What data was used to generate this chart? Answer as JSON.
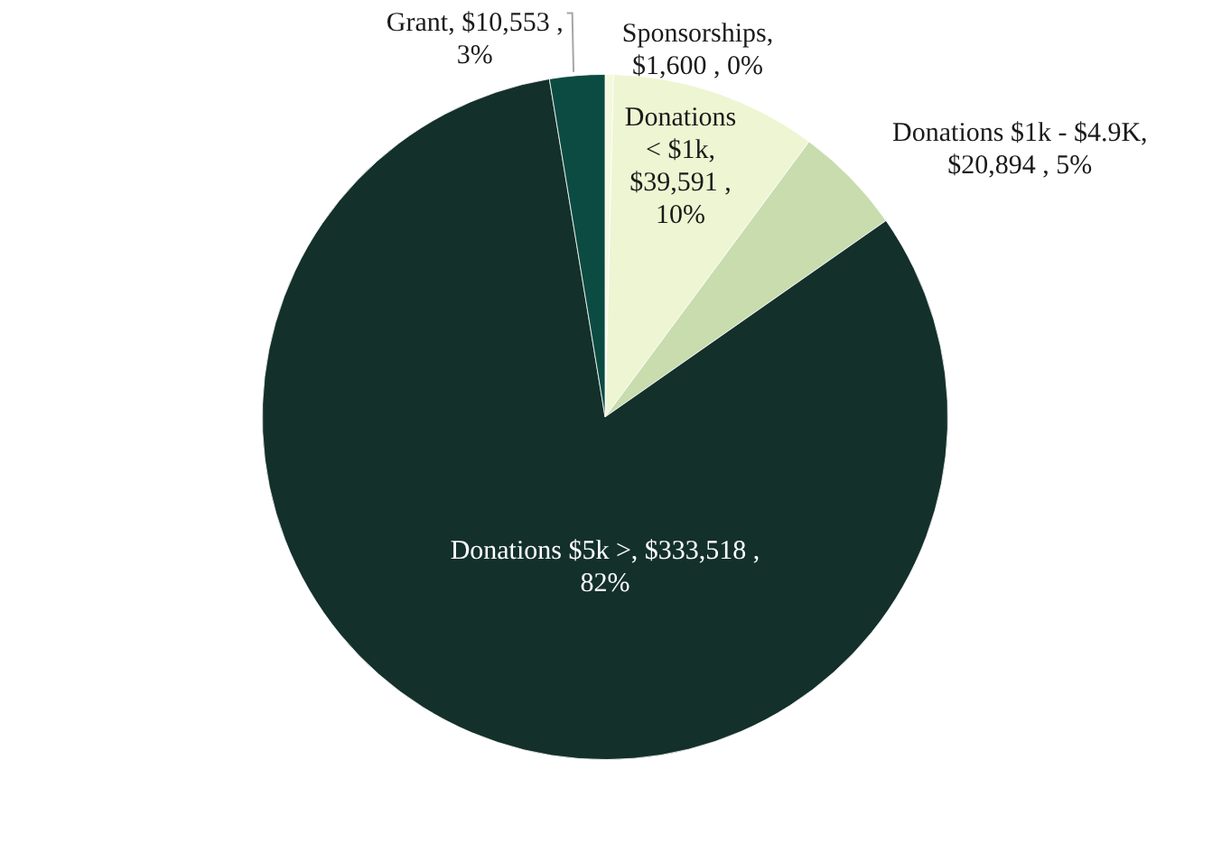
{
  "chart_data": {
    "type": "pie",
    "categories": [
      "Sponsorships",
      "Donations < $1k",
      "Donations $1k - $4.9K",
      "Donations $5k >",
      "Grant"
    ],
    "values": [
      1600,
      39591,
      20894,
      333518,
      10553
    ],
    "colors": [
      "#f4f8dc",
      "#eef5d2",
      "#c8dcae",
      "#13302a",
      "#0b4b42"
    ],
    "value_labels": [
      ", $1,600 , 0%",
      ", $39,591 , 10%",
      ", $20,894 , 5%",
      ", $333,518 , 82%",
      ", $10,553 , 3%"
    ]
  }
}
